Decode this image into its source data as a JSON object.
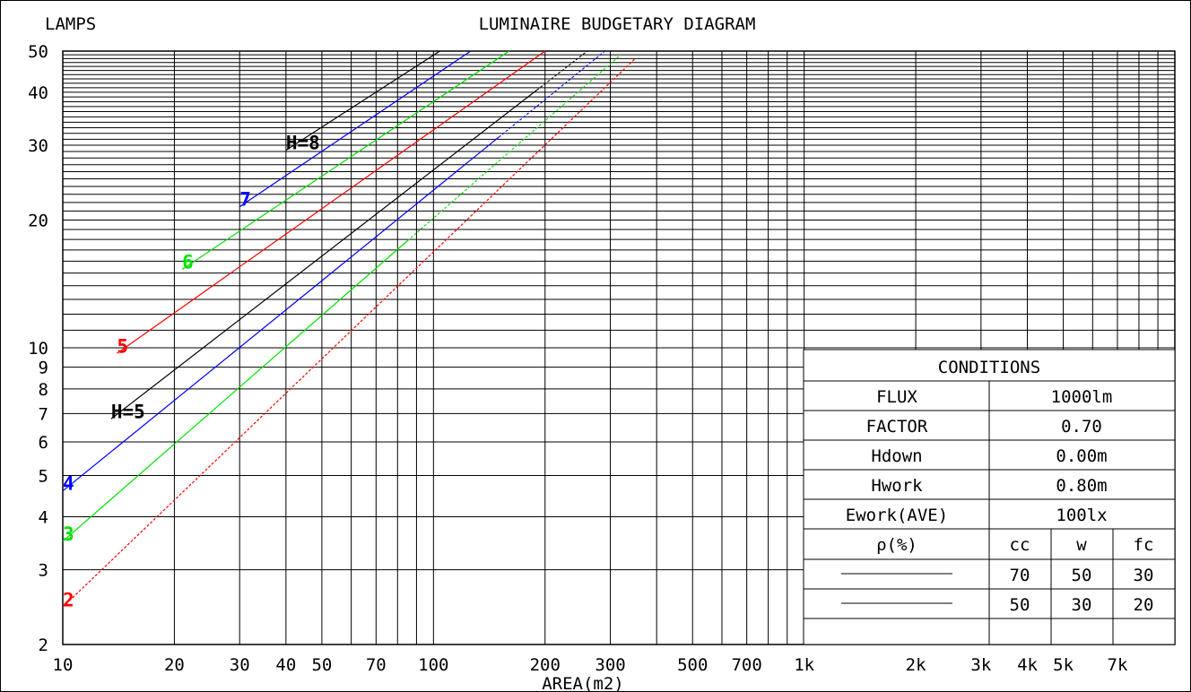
{
  "chart_data": {
    "type": "line",
    "title": "LUMINAIRE BUDGETARY DIAGRAM",
    "xlabel": "AREA(m2)",
    "ylabel": "LAMPS",
    "x_scale": "log",
    "y_scale": "log",
    "xlim": [
      10,
      10000
    ],
    "ylim": [
      2,
      50
    ],
    "grid": true,
    "x_ticks": [
      {
        "value": 10,
        "label": "10"
      },
      {
        "value": 20,
        "label": "20"
      },
      {
        "value": 30,
        "label": "30"
      },
      {
        "value": 40,
        "label": "40"
      },
      {
        "value": 50,
        "label": "50"
      },
      {
        "value": 70,
        "label": "70"
      },
      {
        "value": 100,
        "label": "100"
      },
      {
        "value": 200,
        "label": "200"
      },
      {
        "value": 300,
        "label": "300"
      },
      {
        "value": 500,
        "label": "500"
      },
      {
        "value": 700,
        "label": "700"
      },
      {
        "value": 1000,
        "label": "1k"
      },
      {
        "value": 2000,
        "label": "2k"
      },
      {
        "value": 3000,
        "label": "3k"
      },
      {
        "value": 4000,
        "label": "4k"
      },
      {
        "value": 5000,
        "label": "5k"
      },
      {
        "value": 7000,
        "label": "7k"
      }
    ],
    "x_grid": [
      10,
      20,
      30,
      40,
      50,
      60,
      70,
      80,
      90,
      100,
      200,
      300,
      400,
      500,
      600,
      700,
      800,
      900,
      1000,
      2000,
      3000,
      4000,
      5000,
      6000,
      7000,
      8000,
      9000,
      10000
    ],
    "y_ticks": [
      {
        "value": 2,
        "label": "2"
      },
      {
        "value": 3,
        "label": "3"
      },
      {
        "value": 4,
        "label": "4"
      },
      {
        "value": 5,
        "label": "5"
      },
      {
        "value": 6,
        "label": "6"
      },
      {
        "value": 7,
        "label": "7"
      },
      {
        "value": 8,
        "label": "8"
      },
      {
        "value": 9,
        "label": "9"
      },
      {
        "value": 10,
        "label": "10"
      },
      {
        "value": 20,
        "label": "20"
      },
      {
        "value": 30,
        "label": "30"
      },
      {
        "value": 40,
        "label": "40"
      },
      {
        "value": 50,
        "label": "50"
      }
    ],
    "y_grid": [
      2,
      3,
      4,
      5,
      6,
      7,
      8,
      9,
      10,
      11,
      12,
      13,
      14,
      15,
      16,
      17,
      18,
      19,
      20,
      21,
      22,
      23,
      24,
      25,
      26,
      27,
      28,
      29,
      30,
      31,
      32,
      33,
      34,
      35,
      36,
      37,
      38,
      39,
      40,
      41,
      42,
      43,
      44,
      45,
      46,
      47,
      48,
      49,
      50
    ],
    "series": [
      {
        "label": "2",
        "color": "#ff0000",
        "dashed": true,
        "x": [
          10,
          350
        ],
        "y": [
          2.45,
          48
        ]
      },
      {
        "label": "3",
        "color": "#00e000",
        "dashed": false,
        "split_x": 85,
        "x": [
          10,
          320
        ],
        "y": [
          3.5,
          49
        ]
      },
      {
        "label": "4",
        "color": "#0000ff",
        "dashed": false,
        "split_x": 150,
        "x": [
          10,
          290
        ],
        "y": [
          4.6,
          50
        ]
      },
      {
        "label": "H=5",
        "color": "#000000",
        "dashed": false,
        "split_x": 190,
        "x": [
          13.5,
          260
        ],
        "y": [
          6.8,
          50
        ]
      },
      {
        "label": "5",
        "color": "#ff0000",
        "dashed": false,
        "x": [
          14,
          200
        ],
        "y": [
          9.7,
          50
        ]
      },
      {
        "label": "6",
        "color": "#00e000",
        "dashed": false,
        "x": [
          21,
          160
        ],
        "y": [
          15.3,
          50
        ]
      },
      {
        "label": "7",
        "color": "#0000ff",
        "dashed": false,
        "x": [
          30,
          126
        ],
        "y": [
          21.5,
          50
        ]
      },
      {
        "label": "H=8",
        "color": "#000000",
        "dashed": false,
        "x": [
          40,
          104
        ],
        "y": [
          29.2,
          50
        ]
      }
    ]
  },
  "conditions": {
    "title": "CONDITIONS",
    "rows": [
      {
        "label": "FLUX",
        "value": "1000lm"
      },
      {
        "label": "FACTOR",
        "value": "0.70"
      },
      {
        "label": "Hdown",
        "value": "0.00m"
      },
      {
        "label": "Hwork",
        "value": "0.80m"
      },
      {
        "label": "Ework(AVE)",
        "value": "100lx"
      }
    ],
    "reflect_header": {
      "label": "ρ(%)",
      "cc": "cc",
      "w": "w",
      "fc": "fc"
    },
    "reflect_rows": [
      {
        "cc": "70",
        "w": "50",
        "fc": "30"
      },
      {
        "cc": "50",
        "w": "30",
        "fc": "20"
      }
    ]
  }
}
